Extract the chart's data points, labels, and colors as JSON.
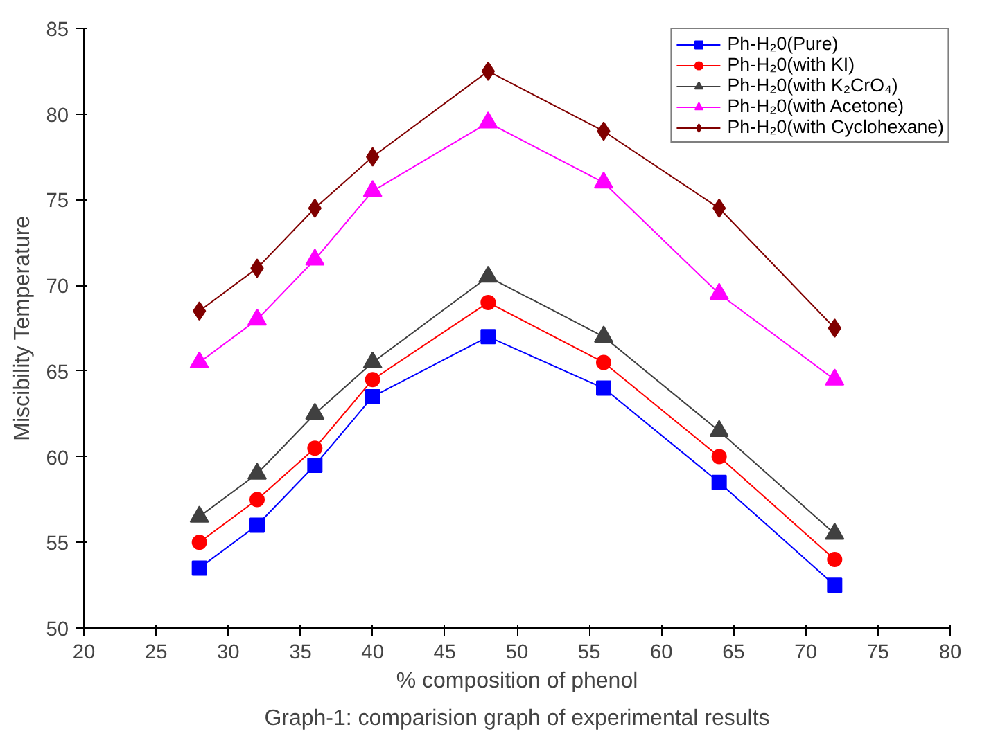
{
  "chart_data": {
    "type": "line",
    "xlabel": "% composition of phenol",
    "ylabel": "Miscibility Temperature",
    "annotations": [
      "Graph-1: comparision graph of experimental results"
    ],
    "x": [
      28,
      32,
      36,
      40,
      48,
      56,
      64,
      72
    ],
    "xlim": [
      20,
      80
    ],
    "xticks": [
      20,
      25,
      30,
      35,
      40,
      45,
      50,
      55,
      60,
      65,
      70,
      75,
      80
    ],
    "ylim": [
      50,
      85
    ],
    "yticks": [
      50,
      55,
      60,
      65,
      70,
      75,
      80,
      85
    ],
    "grid": false,
    "legend": "top right",
    "line_style": "solid",
    "series": [
      {
        "name": "Ph-H₂0(Pure)",
        "color": "#0000ff",
        "marker": "square",
        "values": [
          53.5,
          56,
          59.5,
          63.5,
          67,
          64,
          58.5,
          52.5
        ]
      },
      {
        "name": "Ph-H₂0(with KI)",
        "color": "#ff0000",
        "marker": "circle",
        "values": [
          55,
          57.5,
          60.5,
          64.5,
          69,
          65.5,
          60,
          54
        ]
      },
      {
        "name": "Ph-H₂0(with K₂CrO₄)",
        "color": "#404040",
        "marker": "triangle",
        "values": [
          56.5,
          59,
          62.5,
          65.5,
          70.5,
          67,
          61.5,
          55.5
        ]
      },
      {
        "name": "Ph-H₂0(with Acetone)",
        "color": "#ff00ff",
        "marker": "triangle",
        "values": [
          65.5,
          68,
          71.5,
          75.5,
          79.5,
          76,
          69.5,
          64.5
        ]
      },
      {
        "name": "Ph-H₂0(with Cyclohexane)",
        "color": "#800000",
        "marker": "diamond",
        "values": [
          68.5,
          71,
          74.5,
          77.5,
          82.5,
          79,
          74.5,
          67.5
        ]
      }
    ]
  }
}
